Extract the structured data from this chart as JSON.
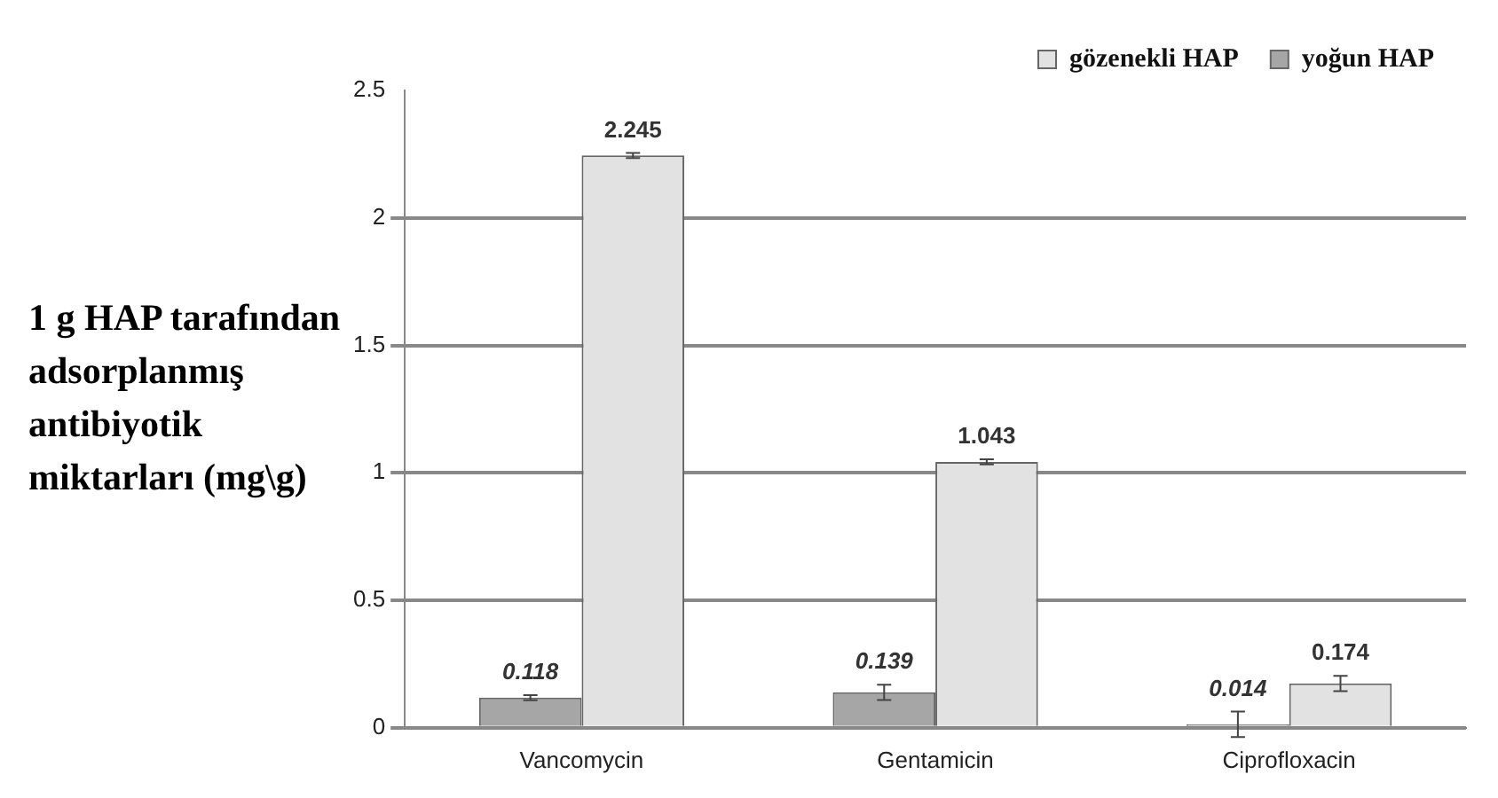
{
  "chart_data": {
    "type": "bar",
    "ylabel": "1 g HAP tarafından adsorplanmış antibiyotik miktarları (mg\\g)",
    "categories": [
      "Vancomycin",
      "Gentamicin",
      "Ciprofloxacin"
    ],
    "series": [
      {
        "name": "yoğun HAP",
        "color": "#a6a6a6",
        "values": [
          0.118,
          0.139,
          0.014
        ],
        "errors": [
          0.01,
          0.03,
          0.05
        ]
      },
      {
        "name": "gözenekli HAP",
        "color": "#e2e2e2",
        "values": [
          2.245,
          1.043,
          0.174
        ],
        "errors": [
          0.01,
          0.01,
          0.03
        ]
      }
    ],
    "ylim": [
      0,
      2.5
    ],
    "yticks": [
      0,
      0.5,
      1,
      1.5,
      2,
      2.5
    ],
    "grid": "y",
    "legend": "top right",
    "data_labels": true
  }
}
